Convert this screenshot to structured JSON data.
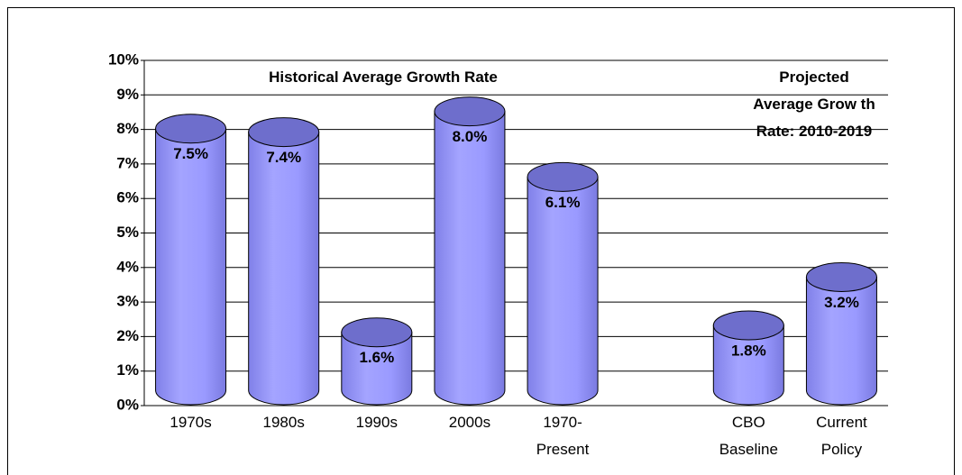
{
  "chart_data": {
    "type": "bar",
    "annotations": [
      "Historical Average Growth Rate",
      "Projected\nAverage Grow th\nRate: 2010-2019"
    ],
    "categories": [
      "1970s",
      "1980s",
      "1990s",
      "2000s",
      "1970-\nPresent",
      null,
      "CBO\nBaseline",
      "Current\nPolicy"
    ],
    "values": [
      7.5,
      7.4,
      1.6,
      8.0,
      6.1,
      null,
      1.8,
      3.2
    ],
    "value_labels": [
      "7.5%",
      "7.4%",
      "1.6%",
      "8.0%",
      "6.1%",
      null,
      "1.8%",
      "3.2%"
    ],
    "color": "#9999ff",
    "ylim": [
      0,
      10
    ],
    "yticks": [
      {
        "value": 0,
        "label": "0%"
      },
      {
        "value": 1,
        "label": "1%"
      },
      {
        "value": 2,
        "label": "2%"
      },
      {
        "value": 3,
        "label": "3%"
      },
      {
        "value": 4,
        "label": "4%"
      },
      {
        "value": 5,
        "label": "5%"
      },
      {
        "value": 6,
        "label": "6%"
      },
      {
        "value": 7,
        "label": "7%"
      },
      {
        "value": 8,
        "label": "8%"
      },
      {
        "value": 9,
        "label": "9%"
      },
      {
        "value": 10,
        "label": "10%"
      }
    ],
    "grid": true
  }
}
